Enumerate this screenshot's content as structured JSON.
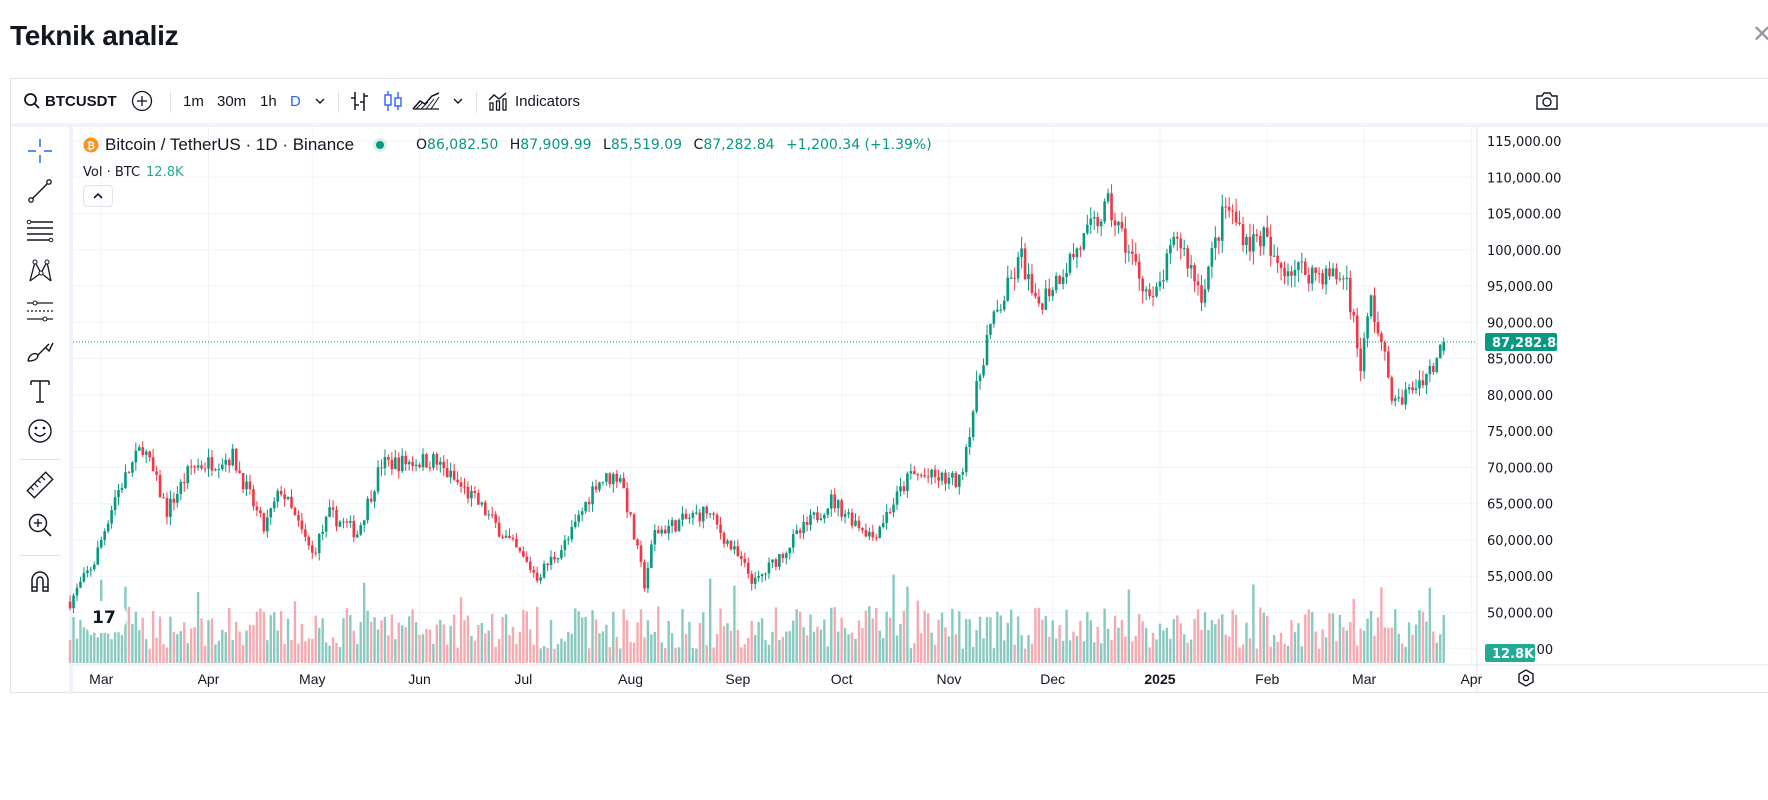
{
  "page": {
    "title": "Teknik analiz"
  },
  "toolbar": {
    "symbol": "BTCUSDT",
    "intervals": [
      "1m",
      "30m",
      "1h",
      "D"
    ],
    "active_interval": "D",
    "indicators_label": "Indicators"
  },
  "legend": {
    "title": "Bitcoin / TetherUS · 1D · Binance",
    "open_key": "O",
    "open": "86,082.50",
    "high_key": "H",
    "high": "87,909.99",
    "low_key": "L",
    "low": "85,519.09",
    "close_key": "C",
    "close": "87,282.84",
    "change": "+1,200.34 (+1.39%)",
    "vol_label": "Vol · BTC",
    "vol_value": "12.8K"
  },
  "colors": {
    "up": "#089981",
    "down": "#f23645",
    "accent": "#2962ff",
    "vol_up": "#88c9c0",
    "vol_down": "#f7a9b0"
  },
  "chart_data": {
    "type": "candlestick",
    "title": "Bitcoin / TetherUS · 1D · Binance",
    "x_labels": [
      "Mar",
      "Apr",
      "May",
      "Jun",
      "Jul",
      "Aug",
      "Sep",
      "Oct",
      "Nov",
      "Dec",
      "2025",
      "Feb",
      "Mar",
      "Apr"
    ],
    "y_ticks": [
      "115,000.00",
      "110,000.00",
      "105,000.00",
      "100,000.00",
      "95,000.00",
      "90,000.00",
      "85,000.00",
      "80,000.00",
      "75,000.00",
      "70,000.00",
      "65,000.00",
      "60,000.00",
      "55,000.00",
      "50,000.00",
      "45,000.00"
    ],
    "ylim": [
      44000,
      116500
    ],
    "last_price": 87282.84,
    "last_price_label": "87,282.84",
    "volume_label": "12.8K",
    "grid": true,
    "anchors": [
      [
        "2024-02-21",
        51500
      ],
      [
        "2024-02-28",
        57000
      ],
      [
        "2024-03-05",
        66000
      ],
      [
        "2024-03-13",
        73000
      ],
      [
        "2024-03-20",
        64000
      ],
      [
        "2024-03-27",
        70000
      ],
      [
        "2024-04-08",
        71500
      ],
      [
        "2024-04-17",
        61500
      ],
      [
        "2024-04-22",
        67000
      ],
      [
        "2024-05-01",
        58000
      ],
      [
        "2024-05-06",
        63500
      ],
      [
        "2024-05-14",
        61000
      ],
      [
        "2024-05-21",
        70500
      ],
      [
        "2024-06-05",
        71000
      ],
      [
        "2024-06-18",
        65000
      ],
      [
        "2024-07-05",
        55000
      ],
      [
        "2024-07-14",
        60000
      ],
      [
        "2024-07-22",
        68000
      ],
      [
        "2024-07-29",
        69000
      ],
      [
        "2024-08-05",
        54000
      ],
      [
        "2024-08-08",
        61000
      ],
      [
        "2024-08-23",
        64000
      ],
      [
        "2024-09-06",
        54000
      ],
      [
        "2024-09-18",
        60500
      ],
      [
        "2024-09-28",
        65500
      ],
      [
        "2024-10-10",
        60500
      ],
      [
        "2024-10-21",
        69000
      ],
      [
        "2024-11-04",
        68000
      ],
      [
        "2024-11-12",
        88000
      ],
      [
        "2024-11-22",
        99000
      ],
      [
        "2024-11-26",
        92000
      ],
      [
        "2024-12-05",
        98000
      ],
      [
        "2024-12-17",
        106000
      ],
      [
        "2024-12-30",
        92500
      ],
      [
        "2025-01-06",
        102000
      ],
      [
        "2025-01-13",
        94000
      ],
      [
        "2025-01-20",
        106000
      ],
      [
        "2025-01-27",
        101000
      ],
      [
        "2025-01-31",
        102000
      ],
      [
        "2025-02-03",
        98000
      ],
      [
        "2025-02-24",
        96000
      ],
      [
        "2025-02-28",
        84000
      ],
      [
        "2025-03-03",
        93000
      ],
      [
        "2025-03-10",
        78500
      ],
      [
        "2025-03-18",
        82500
      ],
      [
        "2025-03-21",
        84000
      ],
      [
        "2025-03-24",
        87282.84
      ]
    ],
    "note": "Daily BTCUSDT candlesticks from late Feb 2024 to 24 Mar 2025; path approximated from the chart, rendered with per-day noise."
  }
}
